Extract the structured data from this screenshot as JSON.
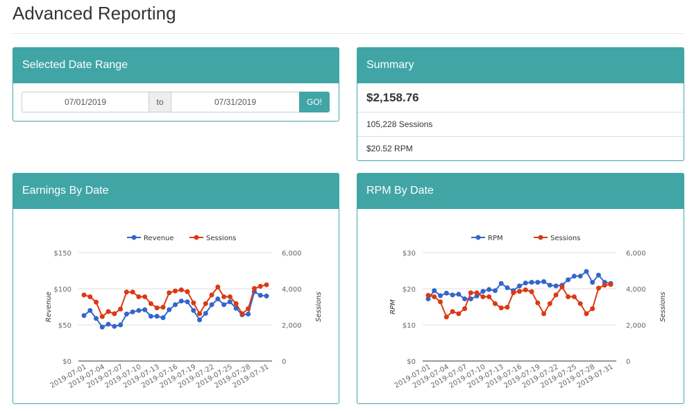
{
  "page": {
    "title": "Advanced Reporting"
  },
  "date_range": {
    "title": "Selected Date Range",
    "from": "07/01/2019",
    "separator": "to",
    "to": "07/31/2019",
    "go_label": "GO!"
  },
  "summary": {
    "title": "Summary",
    "total": "$2,158.76",
    "sessions": "105,228 Sessions",
    "rpm": "$20.52 RPM"
  },
  "colors": {
    "accent": "#41a5a6",
    "blue": "#3366cc",
    "red": "#dc3912"
  },
  "earnings": {
    "title": "Earnings By Date",
    "chart_data": {
      "type": "line",
      "x": [
        "2019-07-01",
        "2019-07-02",
        "2019-07-03",
        "2019-07-04",
        "2019-07-05",
        "2019-07-06",
        "2019-07-07",
        "2019-07-08",
        "2019-07-09",
        "2019-07-10",
        "2019-07-11",
        "2019-07-12",
        "2019-07-13",
        "2019-07-14",
        "2019-07-15",
        "2019-07-16",
        "2019-07-17",
        "2019-07-18",
        "2019-07-19",
        "2019-07-20",
        "2019-07-21",
        "2019-07-22",
        "2019-07-23",
        "2019-07-24",
        "2019-07-25",
        "2019-07-26",
        "2019-07-27",
        "2019-07-28",
        "2019-07-29",
        "2019-07-30",
        "2019-07-31"
      ],
      "x_tick_labels": [
        "2019-07-01",
        "2019-07-04",
        "2019-07-07",
        "2019-07-10",
        "2019-07-13",
        "2019-07-16",
        "2019-07-19",
        "2019-07-22",
        "2019-07-25",
        "2019-07-28",
        "2019-07-31"
      ],
      "series": [
        {
          "name": "Revenue",
          "axis": "left",
          "color": "#3366cc",
          "values": [
            63,
            70,
            59,
            47,
            51,
            48,
            50,
            65,
            68,
            70,
            71,
            62,
            62,
            60,
            71,
            78,
            83,
            82,
            70,
            57,
            66,
            78,
            86,
            78,
            82,
            73,
            64,
            65,
            96,
            91,
            90
          ]
        },
        {
          "name": "Sessions",
          "axis": "right",
          "color": "#dc3912",
          "values": [
            3660,
            3560,
            3260,
            2460,
            2740,
            2620,
            2880,
            3820,
            3820,
            3560,
            3560,
            3180,
            2940,
            2980,
            3780,
            3880,
            3940,
            3840,
            3220,
            2620,
            3180,
            3660,
            4100,
            3560,
            3560,
            3180,
            2620,
            2900,
            4020,
            4140,
            4220
          ]
        }
      ],
      "ylabel": "Revenue",
      "y2label": "Sessions",
      "ylim": [
        0,
        150
      ],
      "y_ticks": [
        "$0",
        "$50",
        "$100",
        "$150"
      ],
      "y2lim": [
        0,
        6000
      ],
      "y2_ticks": [
        "0",
        "2,000",
        "4,000",
        "6,000"
      ],
      "grid": true,
      "legend": "top-center"
    }
  },
  "rpm": {
    "title": "RPM By Date",
    "chart_data": {
      "type": "line",
      "x": [
        "2019-07-01",
        "2019-07-02",
        "2019-07-03",
        "2019-07-04",
        "2019-07-05",
        "2019-07-06",
        "2019-07-07",
        "2019-07-08",
        "2019-07-09",
        "2019-07-10",
        "2019-07-11",
        "2019-07-12",
        "2019-07-13",
        "2019-07-14",
        "2019-07-15",
        "2019-07-16",
        "2019-07-17",
        "2019-07-18",
        "2019-07-19",
        "2019-07-20",
        "2019-07-21",
        "2019-07-22",
        "2019-07-23",
        "2019-07-24",
        "2019-07-25",
        "2019-07-26",
        "2019-07-27",
        "2019-07-28",
        "2019-07-29",
        "2019-07-30",
        "2019-07-31"
      ],
      "x_tick_labels": [
        "2019-07-01",
        "2019-07-04",
        "2019-07-07",
        "2019-07-10",
        "2019-07-13",
        "2019-07-16",
        "2019-07-19",
        "2019-07-22",
        "2019-07-25",
        "2019-07-28",
        "2019-07-31"
      ],
      "series": [
        {
          "name": "RPM",
          "axis": "left",
          "color": "#3366cc",
          "values": [
            17.2,
            19.5,
            18.1,
            18.8,
            18.3,
            18.5,
            17.2,
            17.2,
            18.0,
            19.3,
            19.8,
            19.5,
            21.5,
            20.3,
            19.5,
            20.8,
            21.6,
            21.8,
            21.8,
            22.0,
            21.0,
            20.8,
            21.0,
            22.5,
            23.5,
            23.5,
            24.8,
            21.8,
            23.8,
            21.8,
            21.5
          ]
        },
        {
          "name": "Sessions",
          "axis": "right",
          "color": "#dc3912",
          "values": [
            3640,
            3560,
            3280,
            2440,
            2740,
            2620,
            2900,
            3780,
            3780,
            3560,
            3560,
            3180,
            2940,
            2980,
            3780,
            3860,
            3940,
            3840,
            3220,
            2620,
            3180,
            3660,
            4100,
            3560,
            3560,
            3180,
            2620,
            2900,
            4040,
            4200,
            4240
          ]
        }
      ],
      "ylabel": "RPM",
      "y2label": "Sessions",
      "ylim": [
        0,
        30
      ],
      "y_ticks": [
        "$0",
        "$10",
        "$20",
        "$30"
      ],
      "y2lim": [
        0,
        6000
      ],
      "y2_ticks": [
        "0",
        "2,000",
        "4,000",
        "6,000"
      ],
      "grid": true,
      "legend": "top-center"
    }
  }
}
